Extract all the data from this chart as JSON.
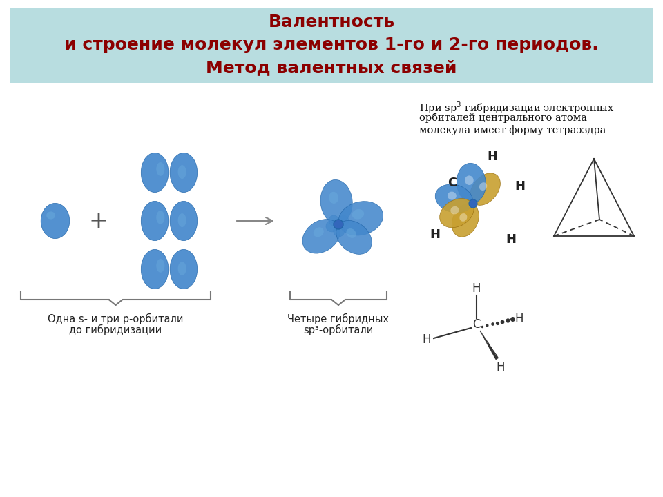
{
  "title_line1": "Валентность",
  "title_line2": "и строение молекул элементов 1-го и 2-го периодов.",
  "title_line3": "Метод валентных связей",
  "title_bg_color": "#b8dde0",
  "title_text_color": "#8b0000",
  "bg_color": "#ffffff",
  "text1_line1": "При sp³-гибридизации электронных",
  "text1_line2": "орбиталей центрального атома",
  "text1_line3": "молекула имеет форму тетраэздра",
  "label1_line1": "Одна s- и три р-орбитали",
  "label1_line2": "до гибридизации",
  "label2_line1": "Четыре гибридных",
  "label2_line2": "sp³-орбитали",
  "orbital_blue": "#4488cc",
  "orbital_blue_light": "#6aabdd",
  "orbital_blue_dark": "#2266aa",
  "yellow_color": "#c8a030",
  "text_color": "#111111"
}
